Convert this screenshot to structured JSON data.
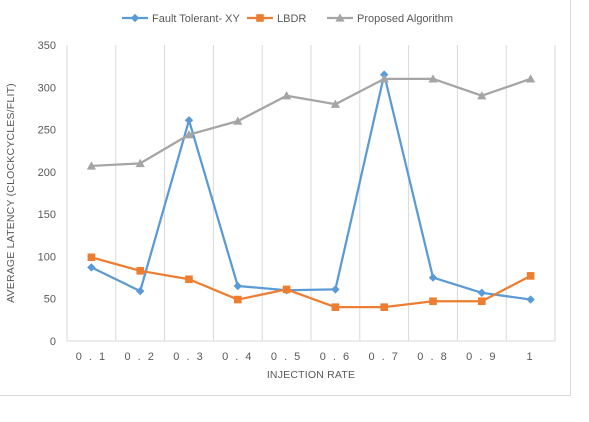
{
  "chart_data": {
    "type": "line",
    "title": "",
    "xlabel": "INJECTION RATE",
    "ylabel": "AVERAGE LATENCY (CLOCKCYCLES/FLIT)",
    "categories": [
      "0.1",
      "0.2",
      "0.3",
      "0.4",
      "0.5",
      "0.6",
      "0.7",
      "0.8",
      "0.9",
      "1"
    ],
    "ylim": [
      0,
      350
    ],
    "yticks": [
      0,
      50,
      100,
      150,
      200,
      250,
      300,
      350
    ],
    "grid": "vertical",
    "legend_position": "top",
    "series": [
      {
        "name": "Fault Tolerant- XY",
        "color": "#5b9bd5",
        "marker": "diamond",
        "values": [
          87,
          59,
          261,
          65,
          60,
          61,
          315,
          75,
          57,
          49
        ]
      },
      {
        "name": "LBDR",
        "color": "#ed7d31",
        "marker": "square",
        "values": [
          99,
          83,
          73,
          49,
          61,
          40,
          40,
          47,
          47,
          77
        ]
      },
      {
        "name": "Proposed Algorithm",
        "color": "#a5a5a5",
        "marker": "triangle",
        "values": [
          207,
          210,
          244,
          260,
          290,
          280,
          310,
          310,
          290,
          310
        ]
      }
    ]
  }
}
